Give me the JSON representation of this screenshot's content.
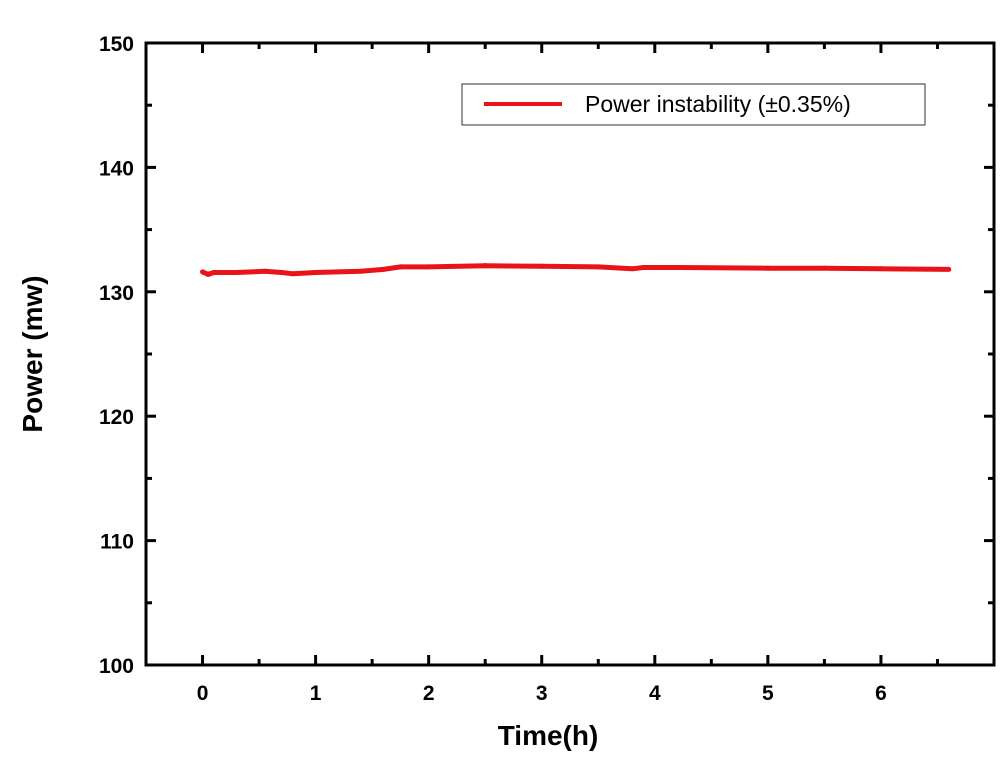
{
  "chart_data": {
    "type": "line",
    "title": "",
    "xlabel": "Time(h)",
    "ylabel": "Power (mw)",
    "xlim": [
      -0.5,
      7
    ],
    "ylim": [
      100,
      150
    ],
    "xticks": [
      0,
      1,
      2,
      3,
      4,
      5,
      6
    ],
    "yticks": [
      100,
      110,
      120,
      130,
      140,
      150
    ],
    "grid": false,
    "legend_position": "top-right",
    "series": [
      {
        "name": "Power instability (±0.35%)",
        "color": "#e8141a",
        "x": [
          0,
          0.05,
          0.1,
          0.3,
          0.55,
          0.7,
          0.8,
          1.0,
          1.4,
          1.6,
          1.75,
          2.0,
          2.5,
          3.0,
          3.5,
          3.8,
          3.9,
          4.2,
          5.0,
          5.5,
          6.0,
          6.6
        ],
        "y": [
          131.6,
          131.4,
          131.55,
          131.55,
          131.65,
          131.55,
          131.45,
          131.55,
          131.65,
          131.8,
          132.0,
          132.0,
          132.1,
          132.05,
          132.0,
          131.85,
          131.95,
          131.95,
          131.9,
          131.9,
          131.85,
          131.8
        ]
      }
    ]
  }
}
